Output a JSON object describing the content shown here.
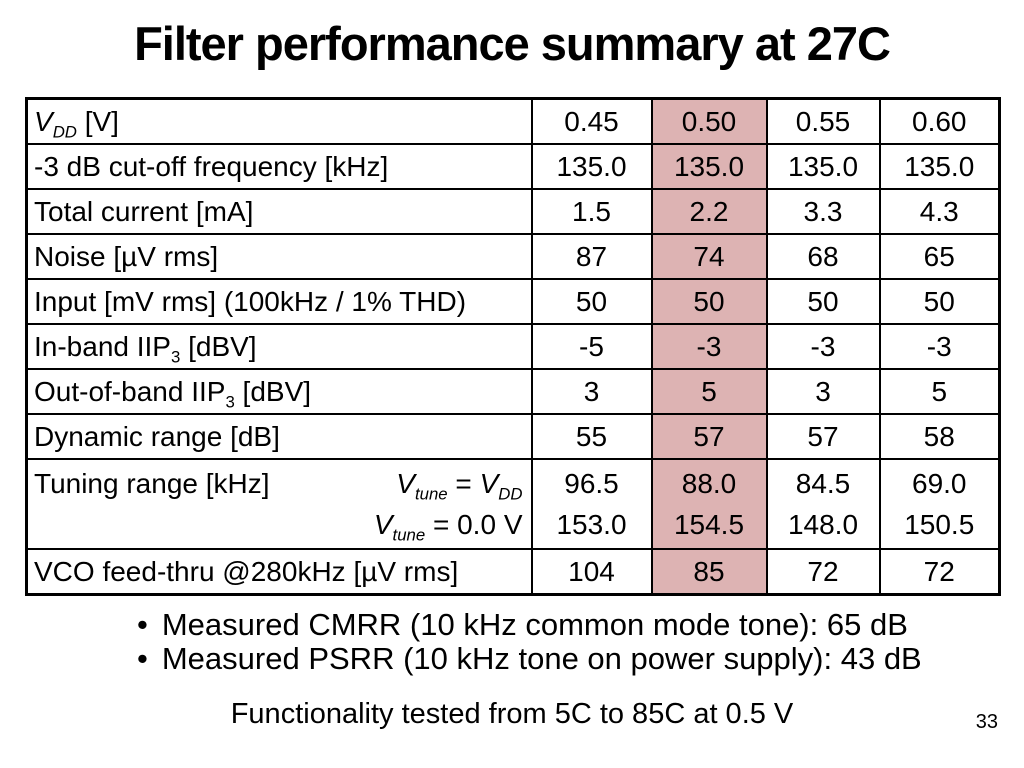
{
  "slide": {
    "title": "Filter performance summary at 27C",
    "page_number": "33",
    "bullet_glyph": "•",
    "bullets": [
      "Measured CMRR (10 kHz common mode tone): 65 dB",
      "Measured PSRR (10 kHz tone on power supply): 43 dB"
    ],
    "footer_note": "Functionality tested from 5C to 85C at 0.5 V"
  },
  "colors": {
    "highlight_fill": "#ddb3b3",
    "table_border": "#000000",
    "text": "#000000",
    "background": "#ffffff"
  },
  "table": {
    "highlight_column_index": 1,
    "highlight_column_value": "0.50",
    "rows": [
      {
        "name": "vdd",
        "label": [
          {
            "t": "V",
            "i": true
          },
          {
            "t": "DD",
            "i": true,
            "sub": true
          },
          {
            "t": " [V]"
          }
        ],
        "values": [
          "0.45",
          "0.50",
          "0.55",
          "0.60"
        ]
      },
      {
        "name": "cutoff-frequency",
        "label": [
          {
            "t": "-3 dB cut-off frequency [kHz]"
          }
        ],
        "values": [
          "135.0",
          "135.0",
          "135.0",
          "135.0"
        ]
      },
      {
        "name": "total-current",
        "label": [
          {
            "t": "Total current [mA]"
          }
        ],
        "values": [
          "1.5",
          "2.2",
          "3.3",
          "4.3"
        ]
      },
      {
        "name": "noise",
        "label": [
          {
            "t": "Noise [µV rms]"
          }
        ],
        "values": [
          "87",
          "74",
          "68",
          "65"
        ]
      },
      {
        "name": "input",
        "label": [
          {
            "t": "Input [mV rms] (100kHz / 1% THD)"
          }
        ],
        "values": [
          "50",
          "50",
          "50",
          "50"
        ]
      },
      {
        "name": "in-band-iip3",
        "label": [
          {
            "t": "In-band IIP"
          },
          {
            "t": "3",
            "sub": true
          },
          {
            "t": " [dBV]"
          }
        ],
        "values": [
          "-5",
          "-3",
          "-3",
          "-3"
        ]
      },
      {
        "name": "out-of-band-iip3",
        "label": [
          {
            "t": "Out-of-band IIP"
          },
          {
            "t": "3",
            "sub": true
          },
          {
            "t": " [dBV]"
          }
        ],
        "values": [
          "3",
          "5",
          "3",
          "5"
        ]
      },
      {
        "name": "dynamic-range",
        "label": [
          {
            "t": "Dynamic range [dB]"
          }
        ],
        "values": [
          "55",
          "57",
          "57",
          "58"
        ]
      },
      {
        "name": "tuning-range",
        "label": [
          {
            "t": "Tuning range [kHz]"
          }
        ],
        "formulas": [
          [
            {
              "t": "V",
              "i": true
            },
            {
              "t": "tune",
              "i": true,
              "sub": true
            },
            {
              "t": " = "
            },
            {
              "t": "V",
              "i": true
            },
            {
              "t": "DD",
              "i": true,
              "sub": true
            }
          ],
          [
            {
              "t": "V",
              "i": true
            },
            {
              "t": "tune",
              "i": true,
              "sub": true
            },
            {
              "t": " = 0.0 V"
            }
          ]
        ],
        "values": [
          [
            "96.5",
            "153.0"
          ],
          [
            "88.0",
            "154.5"
          ],
          [
            "84.5",
            "148.0"
          ],
          [
            "69.0",
            "150.5"
          ]
        ]
      },
      {
        "name": "vco-feed-thru",
        "label": [
          {
            "t": "VCO feed-thru @280kHz [µV rms]"
          }
        ],
        "values": [
          "104",
          "85",
          "72",
          "72"
        ]
      }
    ]
  }
}
